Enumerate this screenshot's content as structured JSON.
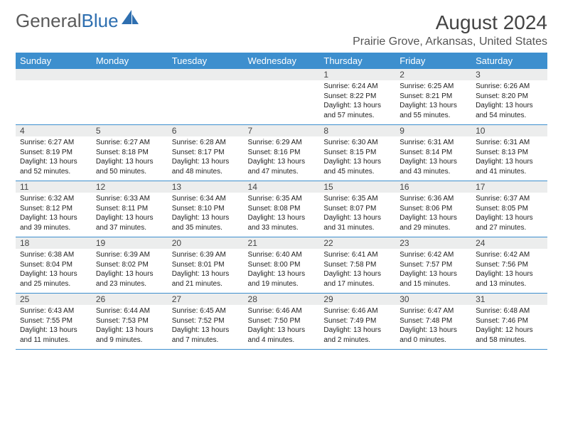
{
  "brand": {
    "name1": "General",
    "name2": "Blue"
  },
  "title": "August 2024",
  "location": "Prairie Grove, Arkansas, United States",
  "colors": {
    "header_bg": "#3d8fce",
    "header_text": "#ffffff",
    "daynum_bg": "#eceded",
    "border": "#3d8fce",
    "brand_gray": "#5a5a5a",
    "brand_blue": "#2e6fb0",
    "body_text": "#222222"
  },
  "day_headers": [
    "Sunday",
    "Monday",
    "Tuesday",
    "Wednesday",
    "Thursday",
    "Friday",
    "Saturday"
  ],
  "weeks": [
    [
      null,
      null,
      null,
      null,
      {
        "n": "1",
        "sr": "6:24 AM",
        "ss": "8:22 PM",
        "dl": "13 hours and 57 minutes."
      },
      {
        "n": "2",
        "sr": "6:25 AM",
        "ss": "8:21 PM",
        "dl": "13 hours and 55 minutes."
      },
      {
        "n": "3",
        "sr": "6:26 AM",
        "ss": "8:20 PM",
        "dl": "13 hours and 54 minutes."
      }
    ],
    [
      {
        "n": "4",
        "sr": "6:27 AM",
        "ss": "8:19 PM",
        "dl": "13 hours and 52 minutes."
      },
      {
        "n": "5",
        "sr": "6:27 AM",
        "ss": "8:18 PM",
        "dl": "13 hours and 50 minutes."
      },
      {
        "n": "6",
        "sr": "6:28 AM",
        "ss": "8:17 PM",
        "dl": "13 hours and 48 minutes."
      },
      {
        "n": "7",
        "sr": "6:29 AM",
        "ss": "8:16 PM",
        "dl": "13 hours and 47 minutes."
      },
      {
        "n": "8",
        "sr": "6:30 AM",
        "ss": "8:15 PM",
        "dl": "13 hours and 45 minutes."
      },
      {
        "n": "9",
        "sr": "6:31 AM",
        "ss": "8:14 PM",
        "dl": "13 hours and 43 minutes."
      },
      {
        "n": "10",
        "sr": "6:31 AM",
        "ss": "8:13 PM",
        "dl": "13 hours and 41 minutes."
      }
    ],
    [
      {
        "n": "11",
        "sr": "6:32 AM",
        "ss": "8:12 PM",
        "dl": "13 hours and 39 minutes."
      },
      {
        "n": "12",
        "sr": "6:33 AM",
        "ss": "8:11 PM",
        "dl": "13 hours and 37 minutes."
      },
      {
        "n": "13",
        "sr": "6:34 AM",
        "ss": "8:10 PM",
        "dl": "13 hours and 35 minutes."
      },
      {
        "n": "14",
        "sr": "6:35 AM",
        "ss": "8:08 PM",
        "dl": "13 hours and 33 minutes."
      },
      {
        "n": "15",
        "sr": "6:35 AM",
        "ss": "8:07 PM",
        "dl": "13 hours and 31 minutes."
      },
      {
        "n": "16",
        "sr": "6:36 AM",
        "ss": "8:06 PM",
        "dl": "13 hours and 29 minutes."
      },
      {
        "n": "17",
        "sr": "6:37 AM",
        "ss": "8:05 PM",
        "dl": "13 hours and 27 minutes."
      }
    ],
    [
      {
        "n": "18",
        "sr": "6:38 AM",
        "ss": "8:04 PM",
        "dl": "13 hours and 25 minutes."
      },
      {
        "n": "19",
        "sr": "6:39 AM",
        "ss": "8:02 PM",
        "dl": "13 hours and 23 minutes."
      },
      {
        "n": "20",
        "sr": "6:39 AM",
        "ss": "8:01 PM",
        "dl": "13 hours and 21 minutes."
      },
      {
        "n": "21",
        "sr": "6:40 AM",
        "ss": "8:00 PM",
        "dl": "13 hours and 19 minutes."
      },
      {
        "n": "22",
        "sr": "6:41 AM",
        "ss": "7:58 PM",
        "dl": "13 hours and 17 minutes."
      },
      {
        "n": "23",
        "sr": "6:42 AM",
        "ss": "7:57 PM",
        "dl": "13 hours and 15 minutes."
      },
      {
        "n": "24",
        "sr": "6:42 AM",
        "ss": "7:56 PM",
        "dl": "13 hours and 13 minutes."
      }
    ],
    [
      {
        "n": "25",
        "sr": "6:43 AM",
        "ss": "7:55 PM",
        "dl": "13 hours and 11 minutes."
      },
      {
        "n": "26",
        "sr": "6:44 AM",
        "ss": "7:53 PM",
        "dl": "13 hours and 9 minutes."
      },
      {
        "n": "27",
        "sr": "6:45 AM",
        "ss": "7:52 PM",
        "dl": "13 hours and 7 minutes."
      },
      {
        "n": "28",
        "sr": "6:46 AM",
        "ss": "7:50 PM",
        "dl": "13 hours and 4 minutes."
      },
      {
        "n": "29",
        "sr": "6:46 AM",
        "ss": "7:49 PM",
        "dl": "13 hours and 2 minutes."
      },
      {
        "n": "30",
        "sr": "6:47 AM",
        "ss": "7:48 PM",
        "dl": "13 hours and 0 minutes."
      },
      {
        "n": "31",
        "sr": "6:48 AM",
        "ss": "7:46 PM",
        "dl": "12 hours and 58 minutes."
      }
    ]
  ],
  "labels": {
    "sunrise": "Sunrise:",
    "sunset": "Sunset:",
    "daylight": "Daylight:"
  }
}
